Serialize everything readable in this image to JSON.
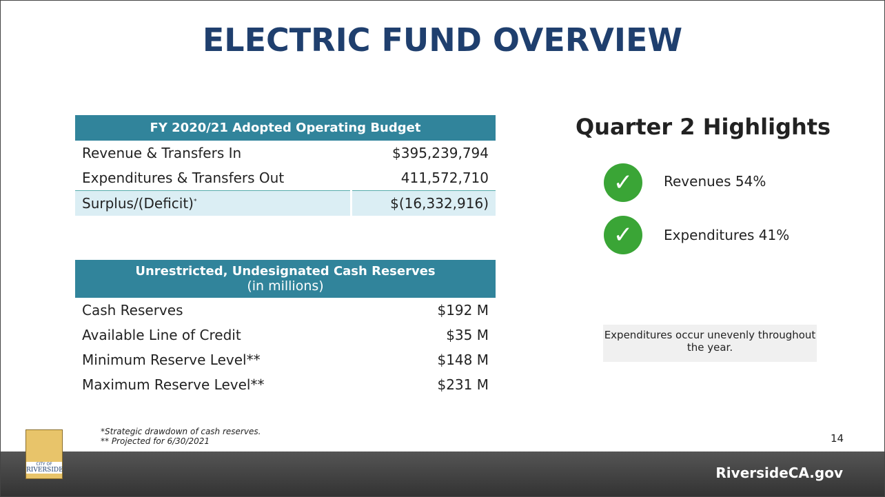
{
  "title": "ELECTRIC FUND OVERVIEW",
  "budget": {
    "header": "FY 2020/21 Adopted Operating Budget",
    "rows": [
      [
        "Revenue & Transfers In",
        "$395,239,794"
      ],
      [
        "Expenditures & Transfers Out",
        "411,572,710"
      ],
      [
        "Surplus/(Deficit)",
        "$(16,332,916)"
      ]
    ],
    "mark": "*"
  },
  "reserves": {
    "header": "Unrestricted, Undesignated Cash Reserves",
    "subheader": "(in millions)",
    "rows": [
      [
        "Cash Reserves",
        "$192 M"
      ],
      [
        "Available Line of Credit",
        "$35 M"
      ],
      [
        "Minimum Reserve Level**",
        "$148 M"
      ],
      [
        "Maximum Reserve Level**",
        "$231 M"
      ]
    ]
  },
  "highlights": {
    "title": "Quarter 2 Highlights",
    "items": [
      "Revenues 54%",
      "Expenditures 41%"
    ],
    "note": "Expenditures occur unevenly throughout the year."
  },
  "footnotes": [
    "*Strategic drawdown of cash reserves.",
    "** Projected for 6/30/2021"
  ],
  "page_number": "14",
  "logo": {
    "top": "CITY OF",
    "name": "RIVERSIDE"
  },
  "footer": "RiversideCA.gov"
}
